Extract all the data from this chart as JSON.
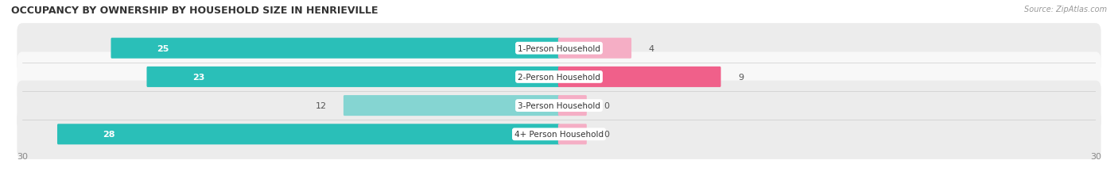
{
  "title": "OCCUPANCY BY OWNERSHIP BY HOUSEHOLD SIZE IN HENRIEVILLE",
  "source": "Source: ZipAtlas.com",
  "categories": [
    "1-Person Household",
    "2-Person Household",
    "3-Person Household",
    "4+ Person Household"
  ],
  "owner_values": [
    25,
    23,
    12,
    28
  ],
  "renter_values": [
    4,
    9,
    0,
    0
  ],
  "owner_color_dark": "#2abfb8",
  "owner_color_light": "#85d5d2",
  "renter_color_dark": "#f0608a",
  "renter_color_light": "#f5aec5",
  "row_bg_even": "#ececec",
  "row_bg_odd": "#f8f8f8",
  "axis_max": 30,
  "bar_height": 0.62,
  "figsize": [
    14.06,
    2.32
  ],
  "dpi": 100,
  "title_fontsize": 9,
  "label_fontsize": 7.5,
  "value_fontsize": 8,
  "source_fontsize": 7
}
